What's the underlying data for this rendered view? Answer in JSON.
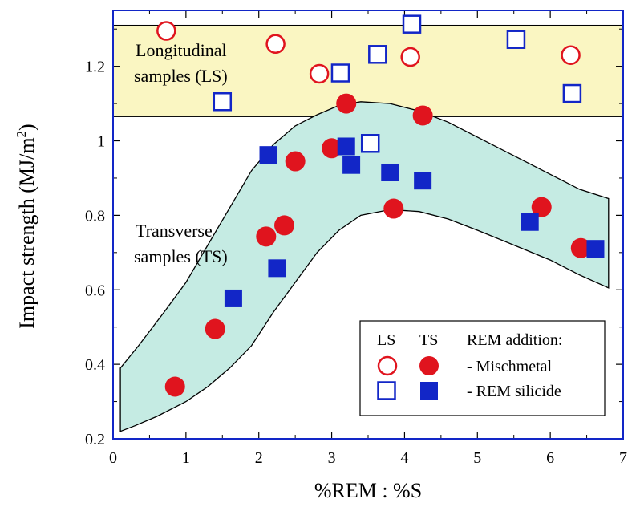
{
  "chart_data": {
    "type": "scatter",
    "xlabel": "%REM : %S",
    "ylabel_main": "Impact strength  (MJ/m",
    "ylabel_sup": "2",
    "ylabel_end": ")",
    "xlim": [
      0,
      7
    ],
    "ylim": [
      0.2,
      1.35
    ],
    "x_ticks": [
      0,
      1,
      2,
      3,
      4,
      5,
      6,
      7
    ],
    "y_ticks": [
      0.2,
      0.4,
      0.6,
      0.8,
      1.0,
      1.2
    ],
    "x_tick_labels": [
      "0",
      "1",
      "2",
      "3",
      "4",
      "5",
      "6",
      "7"
    ],
    "y_tick_labels": [
      "0.2",
      "0.4",
      "0.6",
      "0.8",
      "1",
      "1.2"
    ],
    "grid": false,
    "regions": {
      "longitudinal": {
        "label_line1": "Longitudinal",
        "label_line2": "samples (LS)",
        "y_range": [
          1.065,
          1.31
        ],
        "color": "#faf6c2"
      },
      "transverse": {
        "label_line1": "Transverse",
        "label_line2": "samples (TS)",
        "color": "#c5ebe3",
        "upper": [
          [
            0.1,
            0.39
          ],
          [
            0.35,
            0.45
          ],
          [
            0.7,
            0.54
          ],
          [
            1.0,
            0.62
          ],
          [
            1.3,
            0.72
          ],
          [
            1.6,
            0.82
          ],
          [
            1.9,
            0.92
          ],
          [
            2.2,
            0.99
          ],
          [
            2.5,
            1.04
          ],
          [
            2.8,
            1.07
          ],
          [
            3.1,
            1.095
          ],
          [
            3.4,
            1.105
          ],
          [
            3.8,
            1.1
          ],
          [
            4.2,
            1.08
          ],
          [
            4.6,
            1.05
          ],
          [
            5.0,
            1.01
          ],
          [
            5.5,
            0.96
          ],
          [
            6.0,
            0.91
          ],
          [
            6.4,
            0.87
          ],
          [
            6.8,
            0.845
          ]
        ],
        "lower": [
          [
            6.8,
            0.605
          ],
          [
            6.4,
            0.64
          ],
          [
            6.0,
            0.68
          ],
          [
            5.5,
            0.72
          ],
          [
            5.0,
            0.76
          ],
          [
            4.6,
            0.79
          ],
          [
            4.2,
            0.81
          ],
          [
            3.8,
            0.815
          ],
          [
            3.4,
            0.8
          ],
          [
            3.1,
            0.76
          ],
          [
            2.8,
            0.7
          ],
          [
            2.5,
            0.62
          ],
          [
            2.2,
            0.54
          ],
          [
            1.9,
            0.45
          ],
          [
            1.6,
            0.39
          ],
          [
            1.3,
            0.34
          ],
          [
            1.0,
            0.3
          ],
          [
            0.6,
            0.26
          ],
          [
            0.3,
            0.235
          ],
          [
            0.1,
            0.22
          ]
        ]
      }
    },
    "series": [
      {
        "name": "LS - Mischmetal",
        "marker": "circle-open",
        "color": "#e0141e",
        "points": [
          [
            0.73,
            1.295
          ],
          [
            2.23,
            1.26
          ],
          [
            2.83,
            1.18
          ],
          [
            4.08,
            1.225
          ],
          [
            6.28,
            1.23
          ]
        ]
      },
      {
        "name": "LS - REM silicide",
        "marker": "square-open",
        "color": "#1226c7",
        "points": [
          [
            1.5,
            1.105
          ],
          [
            3.12,
            1.182
          ],
          [
            3.63,
            1.232
          ],
          [
            4.1,
            1.313
          ],
          [
            5.53,
            1.272
          ],
          [
            6.3,
            1.127
          ],
          [
            3.53,
            0.993
          ]
        ]
      },
      {
        "name": "TS - Mischmetal",
        "marker": "circle-filled",
        "color": "#e0141e",
        "points": [
          [
            0.85,
            0.34
          ],
          [
            1.4,
            0.495
          ],
          [
            2.1,
            0.743
          ],
          [
            2.35,
            0.773
          ],
          [
            2.5,
            0.945
          ],
          [
            3.0,
            0.98
          ],
          [
            3.2,
            1.1
          ],
          [
            3.85,
            0.818
          ],
          [
            4.25,
            1.068
          ],
          [
            5.88,
            0.822
          ],
          [
            6.42,
            0.712
          ]
        ]
      },
      {
        "name": "TS - REM silicide",
        "marker": "square-filled",
        "color": "#1226c7",
        "points": [
          [
            1.65,
            0.577
          ],
          [
            2.25,
            0.658
          ],
          [
            2.13,
            0.962
          ],
          [
            3.2,
            0.985
          ],
          [
            3.27,
            0.935
          ],
          [
            3.8,
            0.915
          ],
          [
            4.25,
            0.893
          ],
          [
            5.72,
            0.782
          ],
          [
            6.62,
            0.71
          ]
        ]
      }
    ],
    "legend": {
      "placement": "bottom-right",
      "col_ls": "LS",
      "col_ts": "TS",
      "title": "REM addition:",
      "row1": "- Mischmetal",
      "row2": "- REM silicide"
    }
  }
}
